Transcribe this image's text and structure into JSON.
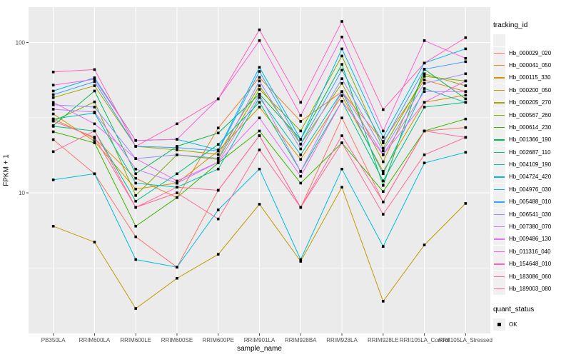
{
  "chart_data": {
    "type": "line",
    "title": "",
    "xlabel": "sample_name",
    "ylabel": "FPKM + 1",
    "yscale": "log10",
    "ylim": [
      1.16,
      172
    ],
    "y_major_ticks": [
      100,
      10
    ],
    "y_minor_gridlines": [
      31.62,
      3.162
    ],
    "grid": true,
    "panel_bg": "#EBEBEB",
    "grid_color": "#FFFFFF",
    "tick_label_color": "#4D4D4D",
    "marker": "black-square",
    "legend_position": "right",
    "legend_title": "tracking_id",
    "categories": [
      "PB350LA",
      "RRIM600LA",
      "RRIM600LE",
      "RRIM600SE",
      "RRIM600PE",
      "RRIM901LA",
      "RRIM928BA",
      "RRIM928LA",
      "RRIM928LE",
      "RRII105LA_Control",
      "RRII105LA_Stressed"
    ],
    "series": [
      {
        "name": "Hb_000029_020",
        "color": "#F8766D",
        "values": [
          22.6,
          13.4,
          5.1,
          3.2,
          10.4,
          24.0,
          8.0,
          31.5,
          8.7,
          25.8,
          27.2
        ]
      },
      {
        "name": "Hb_000041_050",
        "color": "#EA8331",
        "values": [
          31.0,
          23.0,
          12.5,
          9.3,
          27.0,
          58.6,
          29.9,
          47.0,
          22.0,
          56.4,
          47.2
        ]
      },
      {
        "name": "Hb_000115_330",
        "color": "#D89000",
        "values": [
          33.5,
          22.0,
          10.6,
          11.6,
          19.0,
          37.2,
          16.7,
          44.3,
          13.9,
          40.0,
          44.7
        ]
      },
      {
        "name": "Hb_000200_050",
        "color": "#C09B00",
        "values": [
          6.0,
          4.7,
          1.7,
          2.7,
          3.9,
          8.4,
          3.5,
          10.9,
          1.9,
          4.5,
          8.5
        ]
      },
      {
        "name": "Hb_000205_270",
        "color": "#A3A500",
        "values": [
          43.0,
          51.6,
          20.4,
          19.3,
          18.0,
          51.6,
          21.1,
          53.5,
          16.1,
          62.0,
          51.6
        ]
      },
      {
        "name": "Hb_000567_260",
        "color": "#7CAE00",
        "values": [
          30.0,
          40.3,
          9.6,
          17.9,
          16.7,
          48.8,
          25.8,
          81.4,
          19.8,
          59.6,
          55.5
        ]
      },
      {
        "name": "Hb_000614_230",
        "color": "#39B600",
        "values": [
          25.5,
          21.5,
          6.0,
          9.3,
          15.8,
          25.8,
          11.6,
          21.5,
          10.2,
          25.8,
          31.0
        ]
      },
      {
        "name": "Hb_001366_190",
        "color": "#00BB4E",
        "values": [
          28.0,
          47.6,
          13.4,
          20.4,
          25.0,
          45.4,
          22.7,
          71.6,
          11.2,
          66.5,
          42.2
        ]
      },
      {
        "name": "Hb_002687_110",
        "color": "#00C087",
        "values": [
          27.7,
          25.8,
          8.8,
          13.4,
          21.0,
          40.0,
          13.9,
          40.7,
          12.0,
          37.2,
          40.0
        ]
      },
      {
        "name": "Hb_004109_190",
        "color": "#00C0AF",
        "values": [
          31.0,
          34.0,
          11.6,
          10.9,
          14.4,
          43.0,
          17.9,
          47.2,
          13.4,
          49.4,
          40.0
        ]
      },
      {
        "name": "Hb_004724_420",
        "color": "#00BCD8",
        "values": [
          12.2,
          13.4,
          3.6,
          3.2,
          7.7,
          14.4,
          3.6,
          14.4,
          4.4,
          15.8,
          18.6
        ]
      },
      {
        "name": "Hb_004976_030",
        "color": "#00B4F0",
        "values": [
          47.6,
          58.3,
          22.3,
          22.7,
          19.3,
          68.4,
          22.7,
          90.8,
          23.4,
          73.0,
          90.8
        ]
      },
      {
        "name": "Hb_005488_010",
        "color": "#35A2FF",
        "values": [
          45.0,
          54.9,
          20.4,
          20.0,
          19.0,
          64.2,
          21.1,
          65.5,
          21.5,
          66.5,
          74.6
        ]
      },
      {
        "name": "Hb_006541_030",
        "color": "#9590FF",
        "values": [
          38.5,
          37.2,
          16.9,
          17.9,
          17.0,
          55.5,
          19.6,
          57.5,
          19.0,
          53.5,
          62.0
        ]
      },
      {
        "name": "Hb_007380_070",
        "color": "#C77CFF",
        "values": [
          36.0,
          34.5,
          14.4,
          11.6,
          16.0,
          45.0,
          13.9,
          47.2,
          18.0,
          47.2,
          47.2
        ]
      },
      {
        "name": "Hb_009486_130",
        "color": "#E76BF3",
        "values": [
          40.0,
          28.8,
          16.9,
          12.0,
          16.0,
          31.5,
          12.9,
          40.7,
          17.9,
          40.0,
          55.5
        ]
      },
      {
        "name": "Hb_011316_040",
        "color": "#FA62DB",
        "values": [
          52.1,
          57.0,
          22.3,
          22.7,
          42.2,
          103.0,
          32.7,
          108.9,
          25.8,
          103.0,
          78.5
        ]
      },
      {
        "name": "Hb_154648_010",
        "color": "#FF62BC",
        "values": [
          63.7,
          66.1,
          20.4,
          28.8,
          42.2,
          121.5,
          40.0,
          138.2,
          35.8,
          73.0,
          107.7
        ]
      },
      {
        "name": "Hb_183086_060",
        "color": "#FF6A98",
        "values": [
          18.8,
          25.8,
          8.0,
          10.0,
          6.7,
          19.3,
          8.0,
          21.5,
          7.2,
          17.9,
          23.4
        ]
      },
      {
        "name": "Hb_189003_080",
        "color": "#FF689E",
        "values": [
          30.0,
          23.5,
          8.0,
          10.9,
          10.4,
          24.0,
          8.0,
          24.0,
          8.7,
          25.8,
          23.4
        ]
      }
    ],
    "secondary_legend": {
      "title": "quant_status",
      "items": [
        {
          "label": "OK",
          "symbol": "black-square"
        }
      ]
    }
  }
}
